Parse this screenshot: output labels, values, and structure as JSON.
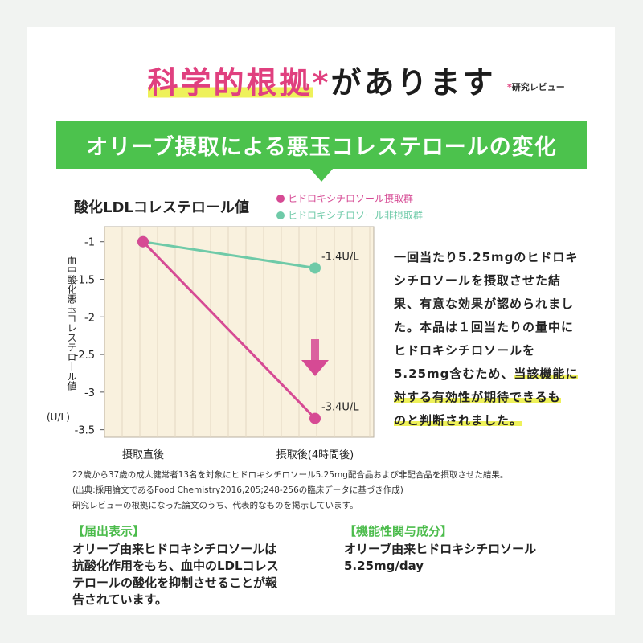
{
  "header": {
    "title_highlight": "科学的根拠",
    "title_star": "*",
    "title_rest": "があります",
    "review_note_mark": "*",
    "review_note": "研究レビュー"
  },
  "banner": {
    "text": "オリーブ摂取による悪玉コレステロールの変化"
  },
  "chart_data": {
    "type": "line",
    "title": "酸化LDLコレステロール値",
    "ylabel": "血中酸化悪玉コレステロール値",
    "ylabel_unit": "(U/L)",
    "categories": [
      "摂取直後",
      "摂取後(4時間後)"
    ],
    "ylim": [
      -3.5,
      -1
    ],
    "yticks": [
      -1,
      -1.5,
      -2,
      -2.5,
      -3,
      -3.5
    ],
    "series": [
      {
        "name": "ヒドロキシチロソール摂取群",
        "color": "#d64a94",
        "values": [
          -1,
          -3.35
        ],
        "end_label": "-3.4U/L"
      },
      {
        "name": "ヒドロキシチロソール非摂取群",
        "color": "#6fcaa8",
        "values": [
          -1,
          -1.35
        ],
        "end_label": "-1.4U/L"
      }
    ],
    "plot_background": "#f9f1de",
    "grid": "vertical",
    "legend": "top"
  },
  "description": {
    "line1": "一回当たり5.25mgのヒドロキ",
    "line2": "シチロソールを摂取させた結",
    "line3": "果、有意な効果が認められまし",
    "line4": "た。本品は１回当たりの量中に",
    "line5": "ヒドロキシチロソールを",
    "line6a": "5.25mg含むため、",
    "line6b": "当該機能に",
    "line7": "対する有効性が期待できるも",
    "line8": "のと判断されました。"
  },
  "notes": {
    "line1": "22歳から37歳の成人健常者13名を対象にヒドロキシチロソール5.25mg配合品および非配合品を摂取させた結果。",
    "line2": "(出典:採用論文であるFood Chemistry2016,205;248-256の臨床データに基づき作成)",
    "line3": "研究レビューの根拠になった論文のうち、代表的なものを掲示しています。"
  },
  "notice": {
    "heading": "【届出表示】",
    "line1": "オリーブ由来ヒドロキシチロソールは",
    "line2": "抗酸化作用をもち、血中のLDLコレス",
    "line3": "テロールの酸化を抑制させることが報",
    "line4": "告されています。"
  },
  "ingredient": {
    "heading": "【機能性関与成分】",
    "line1": "オリーブ由来ヒドロキシチロソール",
    "line2": "5.25mg/day"
  },
  "colors": {
    "accent_green": "#4cc24d",
    "accent_pink": "#e0407f",
    "highlight_yellow": "#eef15a"
  }
}
